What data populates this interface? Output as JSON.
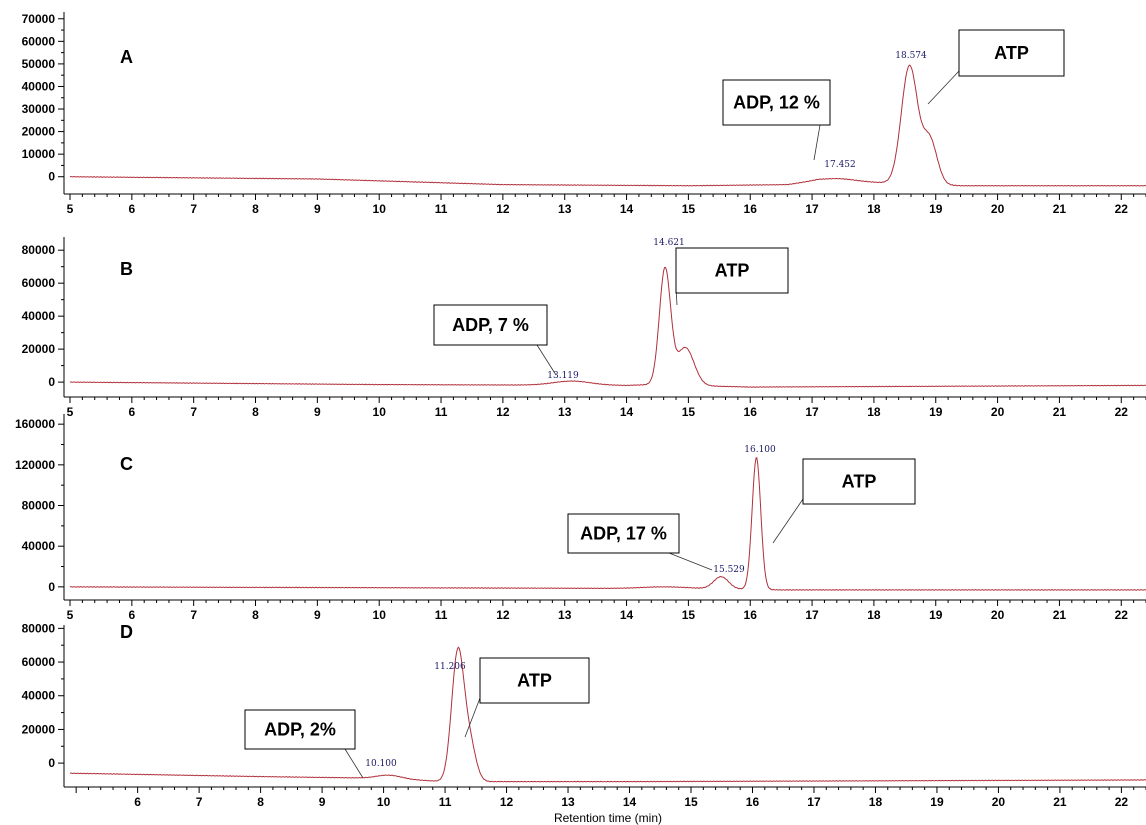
{
  "chart_data": [
    {
      "type": "line",
      "panel": "A",
      "xlim": [
        5,
        22.4
      ],
      "ylim": [
        -5000,
        73000
      ],
      "yticks": [
        0,
        10000,
        20000,
        30000,
        40000,
        50000,
        60000,
        70000
      ],
      "xticks": [
        5,
        6,
        7,
        8,
        9,
        10,
        11,
        12,
        13,
        14,
        15,
        16,
        17,
        18,
        19,
        20,
        21,
        22
      ],
      "baseline": [
        [
          5,
          0
        ],
        [
          9,
          -1000
        ],
        [
          12,
          -3500
        ],
        [
          15,
          -4000
        ],
        [
          16.6,
          -3500
        ],
        [
          17.1,
          -1500
        ],
        [
          19.4,
          -4000
        ],
        [
          22.4,
          -4000
        ]
      ],
      "peaks": [
        {
          "rt": 17.452,
          "label": "17.452",
          "height": 1000,
          "width": 0.25
        },
        {
          "rt": 18.574,
          "label": "18.574",
          "height": 52000,
          "width": 0.13,
          "shoulder": {
            "rt": 18.9,
            "height": 20000,
            "width": 0.12
          }
        }
      ],
      "annotations": [
        {
          "text": "ADP, 12 %",
          "points_to_rt": 17.452
        },
        {
          "text": "ATP",
          "points_to_rt": 18.574
        }
      ]
    },
    {
      "type": "line",
      "panel": "B",
      "xlim": [
        5,
        22.4
      ],
      "ylim": [
        -6000,
        88000
      ],
      "yticks": [
        0,
        20000,
        40000,
        60000,
        80000
      ],
      "xticks": [
        5,
        6,
        7,
        8,
        9,
        10,
        11,
        12,
        13,
        14,
        15,
        16,
        17,
        18,
        19,
        20,
        21,
        22
      ],
      "baseline": [
        [
          5,
          0
        ],
        [
          10,
          -1500
        ],
        [
          12.5,
          -1800
        ],
        [
          14,
          -2000
        ],
        [
          14.4,
          -1500
        ],
        [
          16,
          -3000
        ],
        [
          22.4,
          -2000
        ]
      ],
      "peaks": [
        {
          "rt": 13.119,
          "label": "13.119",
          "height": 2500,
          "width": 0.3
        },
        {
          "rt": 14.621,
          "label": "14.621",
          "height": 70000,
          "width": 0.09,
          "shoulder": {
            "rt": 14.95,
            "height": 23000,
            "width": 0.14
          }
        }
      ],
      "annotations": [
        {
          "text": "ADP, 7 %",
          "points_to_rt": 13.119
        },
        {
          "text": "ATP",
          "points_to_rt": 14.621
        }
      ]
    },
    {
      "type": "line",
      "panel": "C",
      "xlim": [
        5,
        22.4
      ],
      "ylim": [
        -8000,
        170000
      ],
      "yticks": [
        0,
        40000,
        80000,
        120000,
        160000
      ],
      "xticks": [
        5,
        6,
        7,
        8,
        9,
        10,
        11,
        12,
        13,
        14,
        15,
        16,
        17,
        18,
        19,
        20,
        21,
        22
      ],
      "baseline": [
        [
          5,
          0
        ],
        [
          14,
          -1500
        ],
        [
          15,
          -1500
        ],
        [
          16.5,
          -3000
        ],
        [
          22.4,
          -3000
        ]
      ],
      "peaks": [
        {
          "rt": 14.6,
          "label": "",
          "height": 1500,
          "width": 0.35
        },
        {
          "rt": 15.529,
          "label": "15.529",
          "height": 12000,
          "width": 0.12
        },
        {
          "rt": 16.1,
          "label": "16.100",
          "height": 130000,
          "width": 0.07
        }
      ],
      "annotations": [
        {
          "text": "ADP, 17 %",
          "points_to_rt": 15.529
        },
        {
          "text": "ATP",
          "points_to_rt": 16.1
        }
      ]
    },
    {
      "type": "line",
      "panel": "D",
      "xlim": [
        4.9,
        22.4
      ],
      "ylim": [
        -13000,
        82000
      ],
      "yticks": [
        0,
        20000,
        40000,
        60000,
        80000
      ],
      "xticks": [
        6,
        7,
        8,
        9,
        10,
        11,
        12,
        13,
        14,
        15,
        16,
        17,
        18,
        19,
        20,
        21,
        22
      ],
      "baseline": [
        [
          4.9,
          -6000
        ],
        [
          8,
          -8000
        ],
        [
          10,
          -9000
        ],
        [
          11,
          -11000
        ],
        [
          14,
          -11000
        ],
        [
          22.4,
          -10000
        ]
      ],
      "peaks": [
        {
          "rt": 10.1,
          "label": "10.100",
          "height": 2000,
          "width": 0.2
        },
        {
          "rt": 11.206,
          "label": "11.206",
          "height": 76000,
          "width": 0.1,
          "shoulder": {
            "rt": 11.4,
            "height": 22000,
            "width": 0.1
          }
        }
      ],
      "annotations": [
        {
          "text": "ADP, 2%",
          "points_to_rt": 10.1
        },
        {
          "text": "ATP",
          "points_to_rt": 11.206
        }
      ],
      "xlabel": "Retention time (min)"
    }
  ],
  "colors": {
    "trace": "#b0303a",
    "axis": "#000000",
    "box_border": "#000000",
    "peak_label": "#1a1a66"
  }
}
